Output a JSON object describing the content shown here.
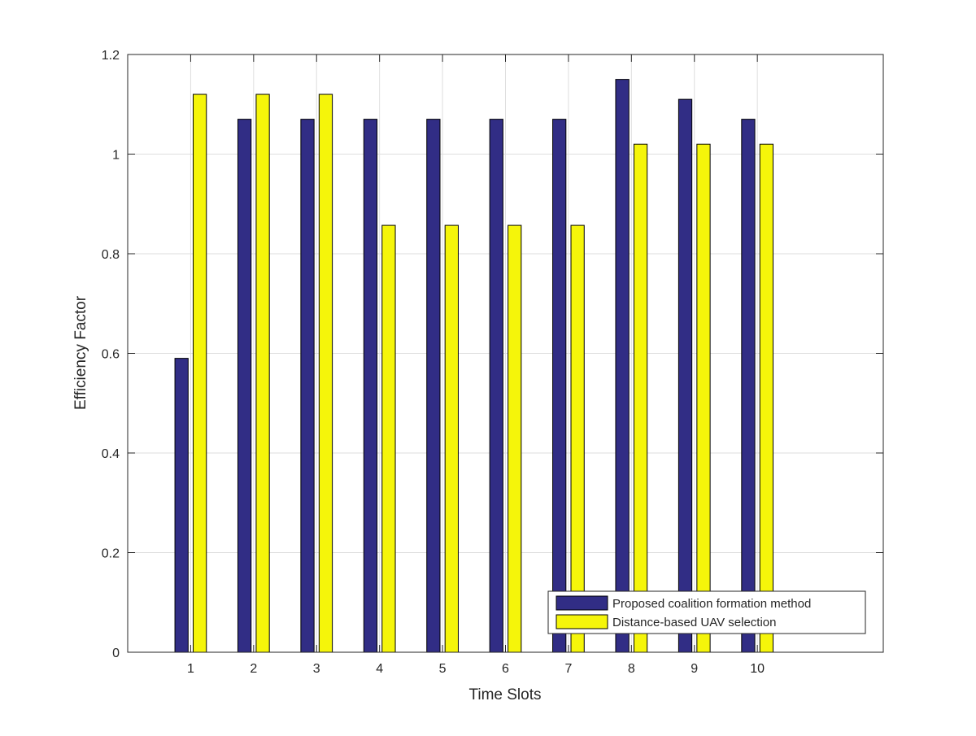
{
  "chart_data": {
    "type": "bar",
    "title": "",
    "xlabel": "Time Slots",
    "ylabel": "Efficiency Factor",
    "categories": [
      "1",
      "2",
      "3",
      "4",
      "5",
      "6",
      "7",
      "8",
      "9",
      "10"
    ],
    "x_axis_range": [
      0,
      12
    ],
    "ylim": [
      0,
      1.2
    ],
    "y_ticks": [
      0,
      0.2,
      0.4,
      0.6,
      0.8,
      1,
      1.2
    ],
    "y_tick_labels": [
      "0",
      "0.2",
      "0.4",
      "0.6",
      "0.8",
      "1",
      "1.2"
    ],
    "grid": true,
    "legend_position": "bottom-right",
    "series": [
      {
        "name": "Proposed coalition formation method",
        "color": "#312d85",
        "values": [
          0.59,
          1.07,
          1.07,
          1.07,
          1.07,
          1.07,
          1.07,
          1.15,
          1.11,
          1.07
        ]
      },
      {
        "name": "Distance-based UAV selection",
        "color": "#f5f50a",
        "values": [
          1.12,
          1.12,
          1.12,
          0.857,
          0.857,
          0.857,
          0.857,
          1.02,
          1.02,
          1.02
        ]
      }
    ]
  }
}
